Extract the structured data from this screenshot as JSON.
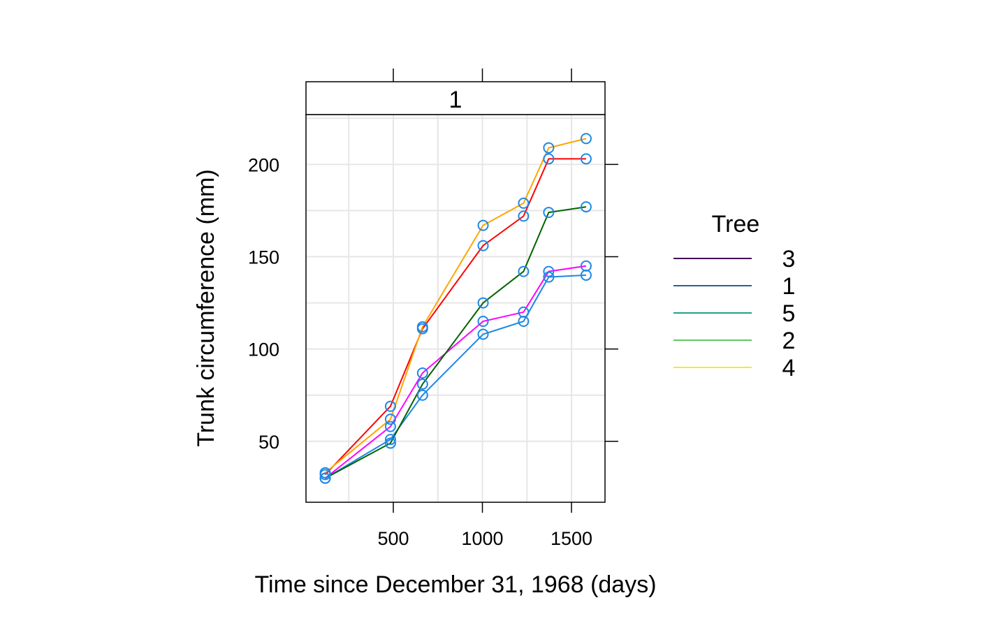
{
  "chart_data": {
    "type": "line",
    "panel_label": "1",
    "xlabel": "Time since December 31, 1968 (days)",
    "ylabel": "Trunk circumference (mm)",
    "xlim": [
      10,
      1688
    ],
    "ylim": [
      17,
      227
    ],
    "x_ticks": [
      500,
      1000,
      1500
    ],
    "y_ticks": [
      50,
      100,
      150,
      200
    ],
    "x_tick_labels": [
      "500",
      "1000",
      "1500"
    ],
    "y_tick_labels": [
      "50",
      "100",
      "150",
      "200"
    ],
    "grid": true,
    "point_color": "#1e88e5",
    "legend": {
      "title": "Tree",
      "placement": "right",
      "entries": [
        {
          "label": "3",
          "color": "#440154"
        },
        {
          "label": "1",
          "color": "#2c5f8a"
        },
        {
          "label": "5",
          "color": "#21a08d"
        },
        {
          "label": "2",
          "color": "#5ec962"
        },
        {
          "label": "4",
          "color": "#fde725"
        }
      ]
    },
    "x": [
      118,
      484,
      664,
      1004,
      1231,
      1372,
      1582
    ],
    "series": [
      {
        "color": "#1e88e5",
        "values": [
          30,
          51,
          75,
          108,
          115,
          139,
          140
        ]
      },
      {
        "color": "#ff00ff",
        "values": [
          30,
          58,
          87,
          115,
          120,
          142,
          145
        ]
      },
      {
        "color": "#006400",
        "values": [
          30,
          49,
          81,
          125,
          142,
          174,
          177
        ]
      },
      {
        "color": "#ff0000",
        "values": [
          32,
          69,
          111,
          156,
          172,
          203,
          203
        ]
      },
      {
        "color": "#ffa500",
        "values": [
          33,
          62,
          112,
          167,
          179,
          209,
          214
        ]
      }
    ]
  }
}
